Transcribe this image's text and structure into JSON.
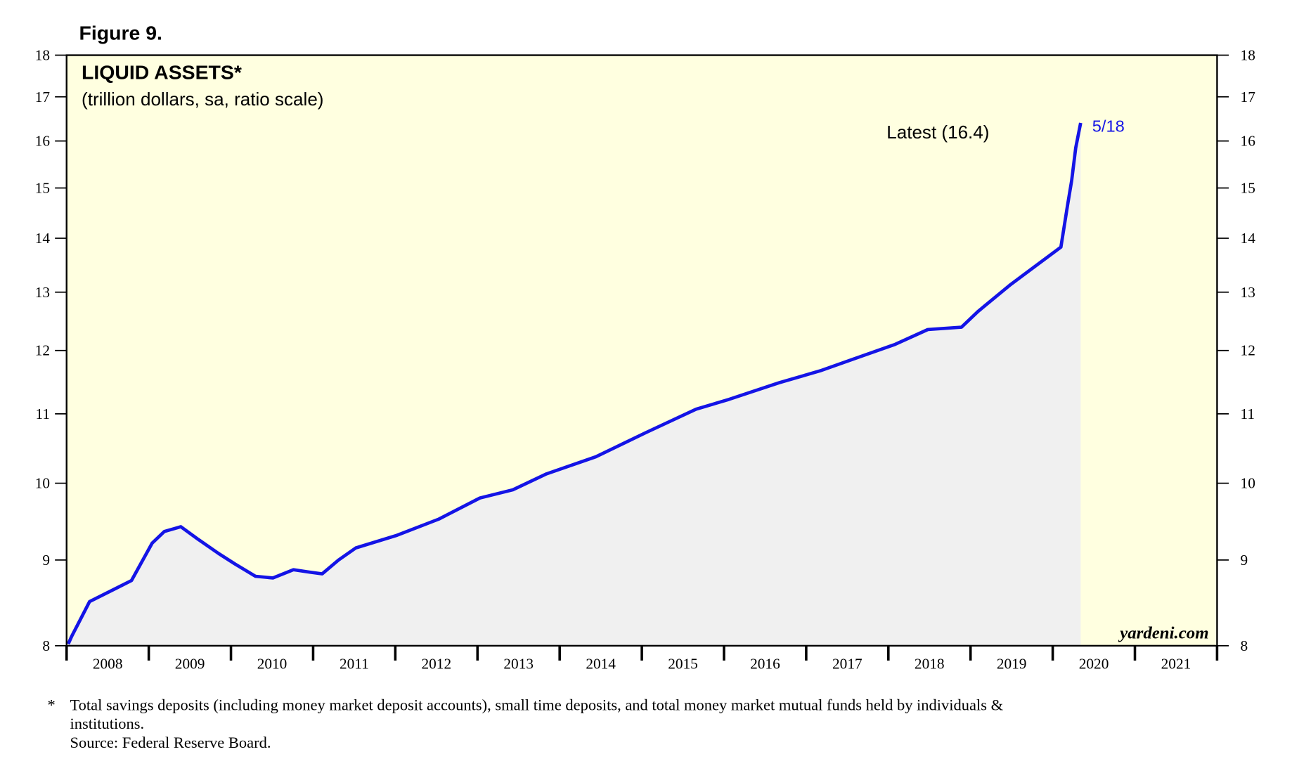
{
  "chart_data": {
    "type": "line",
    "figure_label": "Figure 9.",
    "title": "LIQUID ASSETS*",
    "subtitle": "(trillion dollars, sa, ratio scale)",
    "annotation": "Latest (16.4)",
    "end_label": "5/18",
    "watermark": "yardeni.com",
    "footnote_marker": "*",
    "footnote": [
      "Total savings deposits (including money market deposit accounts), small time deposits, and total money market mutual funds held by individuals &",
      "institutions.",
      "Source: Federal Reserve Board."
    ],
    "log_scale": true,
    "fill_under": true,
    "background": "#ffffe0",
    "series": [
      {
        "name": "Liquid assets",
        "color": "#1414e6",
        "x": [
          2008.02,
          2008.06,
          2008.28,
          2008.59,
          2008.79,
          2009.04,
          2009.19,
          2009.39,
          2009.6,
          2009.85,
          2010.05,
          2010.3,
          2010.51,
          2010.76,
          2010.96,
          2011.11,
          2011.31,
          2011.52,
          2012.02,
          2012.53,
          2013.03,
          2013.43,
          2013.84,
          2014.44,
          2015.05,
          2015.66,
          2016.06,
          2016.67,
          2017.17,
          2017.68,
          2018.08,
          2018.48,
          2018.89,
          2019.09,
          2019.49,
          2019.9,
          2020.1,
          2020.18,
          2020.23,
          2020.28,
          2020.34
        ],
        "values": [
          8.02,
          8.1,
          8.5,
          8.65,
          8.75,
          9.21,
          9.36,
          9.42,
          9.26,
          9.08,
          8.95,
          8.8,
          8.78,
          8.88,
          8.85,
          8.83,
          9.0,
          9.15,
          9.31,
          9.52,
          9.8,
          9.91,
          10.13,
          10.37,
          10.72,
          11.07,
          11.22,
          11.48,
          11.67,
          11.91,
          12.1,
          12.35,
          12.39,
          12.66,
          13.14,
          13.6,
          13.83,
          14.64,
          15.15,
          15.85,
          16.4
        ]
      }
    ],
    "xlim": [
      2008,
      2022
    ],
    "xticks": [
      2008,
      2009,
      2010,
      2011,
      2012,
      2013,
      2014,
      2015,
      2016,
      2017,
      2018,
      2019,
      2020,
      2021,
      2022
    ],
    "xtick_labels": [
      {
        "value": 2008.5,
        "label": "2008"
      },
      {
        "value": 2009.5,
        "label": "2009"
      },
      {
        "value": 2010.5,
        "label": "2010"
      },
      {
        "value": 2011.5,
        "label": "2011"
      },
      {
        "value": 2012.5,
        "label": "2012"
      },
      {
        "value": 2013.5,
        "label": "2013"
      },
      {
        "value": 2014.5,
        "label": "2014"
      },
      {
        "value": 2015.5,
        "label": "2015"
      },
      {
        "value": 2016.5,
        "label": "2016"
      },
      {
        "value": 2017.5,
        "label": "2017"
      },
      {
        "value": 2018.5,
        "label": "2018"
      },
      {
        "value": 2019.5,
        "label": "2019"
      },
      {
        "value": 2020.5,
        "label": "2020"
      },
      {
        "value": 2021.5,
        "label": "2021"
      }
    ],
    "ylim": [
      8,
      18
    ],
    "yticks": [
      8,
      9,
      10,
      11,
      12,
      13,
      14,
      15,
      16,
      17,
      18
    ]
  }
}
